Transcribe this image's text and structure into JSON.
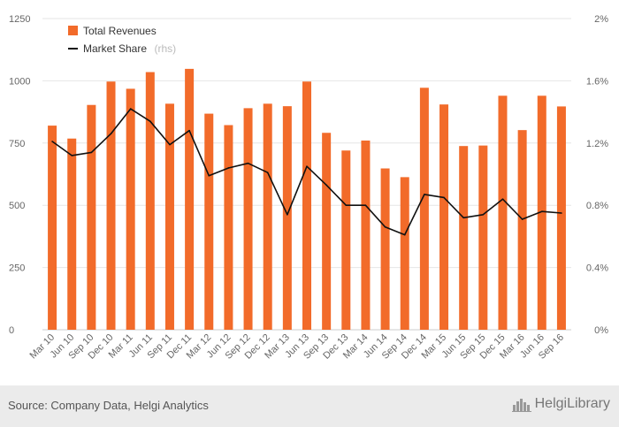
{
  "chart_data": {
    "type": "bar+line",
    "categories": [
      "Mar 10",
      "Jun 10",
      "Sep 10",
      "Dec 10",
      "Mar 11",
      "Jun 11",
      "Sep 11",
      "Dec 11",
      "Mar 12",
      "Jun 12",
      "Sep 12",
      "Dec 12",
      "Mar 13",
      "Jun 13",
      "Sep 13",
      "Dec 13",
      "Mar 14",
      "Jun 14",
      "Sep 14",
      "Dec 14",
      "Mar 15",
      "Jun 15",
      "Sep 15",
      "Dec 15",
      "Mar 16",
      "Jun 16",
      "Sep 16"
    ],
    "series": [
      {
        "name": "Total Revenues",
        "type": "bar",
        "axis": "left",
        "color": "#f26b2a",
        "values": [
          820,
          768,
          903,
          997,
          968,
          1035,
          908,
          1048,
          868,
          822,
          890,
          908,
          898,
          997,
          791,
          720,
          760,
          648,
          613,
          972,
          905,
          738,
          740,
          940,
          802,
          940,
          897
        ]
      },
      {
        "name": "Market Share",
        "type": "line",
        "axis": "right",
        "color": "#111111",
        "unit": "%",
        "values": [
          1.21,
          1.12,
          1.14,
          1.26,
          1.42,
          1.34,
          1.19,
          1.28,
          0.99,
          1.04,
          1.07,
          1.01,
          0.74,
          1.05,
          0.93,
          0.8,
          0.8,
          0.66,
          0.61,
          0.87,
          0.85,
          0.72,
          0.74,
          0.84,
          0.71,
          0.76,
          0.75
        ]
      }
    ],
    "y_left": {
      "range": [
        0,
        1250
      ],
      "ticks": [
        "0",
        "250",
        "500",
        "750",
        "1000",
        "1250"
      ]
    },
    "y_right": {
      "range": [
        0,
        2
      ],
      "ticks": [
        "0%",
        "0.4%",
        "0.8%",
        "1.2%",
        "1.6%",
        "2%"
      ]
    },
    "legend": [
      {
        "label": "Total Revenues",
        "suffix": ""
      },
      {
        "label": "Market Share",
        "suffix": "(rhs)"
      }
    ],
    "legend_position": "top-left",
    "grid": "horizontal"
  },
  "footer": {
    "source": "Source: Company Data, Helgi Analytics",
    "brand": "HelgiLibrary"
  }
}
